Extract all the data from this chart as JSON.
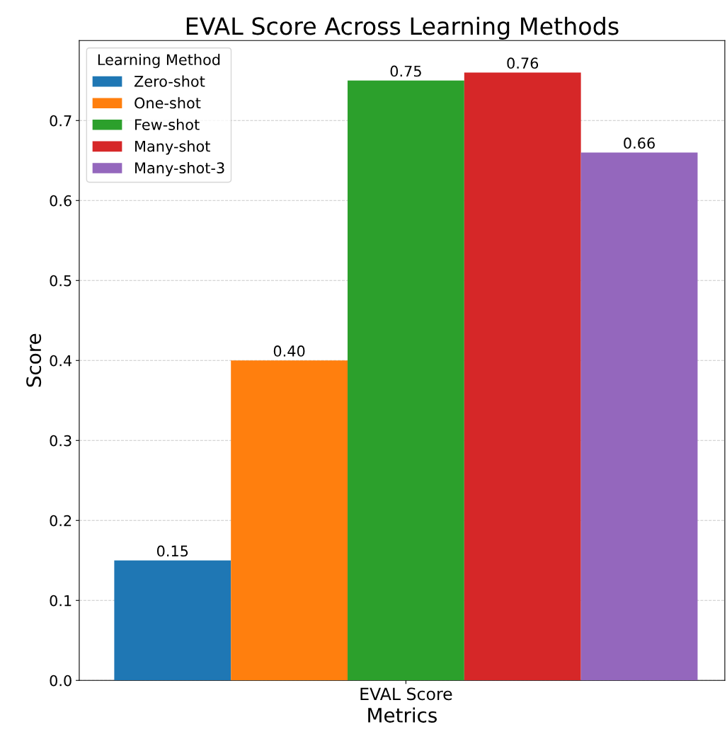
{
  "chart_data": {
    "type": "bar",
    "title": "EVAL Score Across Learning Methods",
    "xlabel": "Metrics",
    "ylabel": "Score",
    "legend_title": "Learning Method",
    "categories": [
      "EVAL Score"
    ],
    "series": [
      {
        "name": "Zero-shot",
        "color": "#1f77b4",
        "values": [
          0.15
        ],
        "value_labels": [
          "0.15"
        ]
      },
      {
        "name": "One-shot",
        "color": "#ff7f0e",
        "values": [
          0.4
        ],
        "value_labels": [
          "0.40"
        ]
      },
      {
        "name": "Few-shot",
        "color": "#2ca02c",
        "values": [
          0.75
        ],
        "value_labels": [
          "0.75"
        ]
      },
      {
        "name": "Many-shot",
        "color": "#d62728",
        "values": [
          0.76
        ],
        "value_labels": [
          "0.76"
        ]
      },
      {
        "name": "Many-shot-3",
        "color": "#9467bd",
        "values": [
          0.66
        ],
        "value_labels": [
          "0.66"
        ]
      }
    ],
    "ylim": [
      0,
      0.8
    ],
    "yticks": [
      {
        "value": 0,
        "label": "0.0"
      },
      0.1,
      0.2,
      0.3,
      0.4,
      0.5,
      0.6,
      0.7
    ],
    "grid": "y",
    "legend": "top left"
  }
}
